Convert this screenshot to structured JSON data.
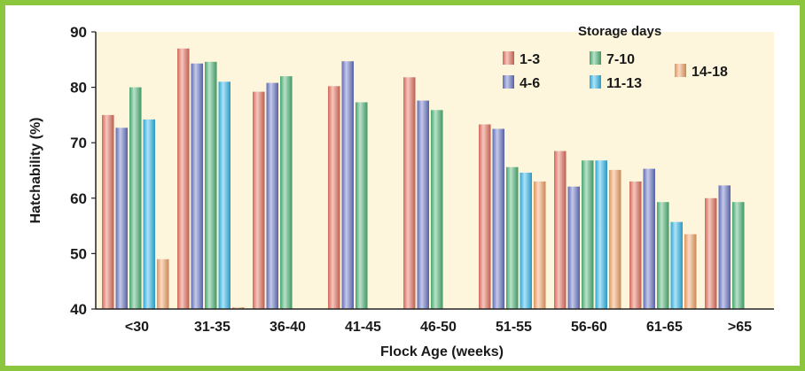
{
  "colors": {
    "frame": "#8cc63f",
    "plot_bg": "#fdf6dc",
    "axis": "#222222"
  },
  "chart_data": {
    "type": "bar",
    "title": "",
    "xlabel": "Flock Age (weeks)",
    "ylabel": "Hatchability (%)",
    "ylim": [
      40,
      90
    ],
    "yticks": [
      40,
      50,
      60,
      70,
      80,
      90
    ],
    "grid": false,
    "legend_title": "Storage days",
    "legend_position": "top-right",
    "categories": [
      "<30",
      "31-35",
      "36-40",
      "41-45",
      "46-50",
      "51-55",
      "56-60",
      "61-65",
      ">65"
    ],
    "series": [
      {
        "name": "1-3",
        "color": "#e8735f",
        "values": [
          75,
          87,
          79.2,
          80.2,
          81.8,
          73.3,
          68.5,
          63,
          60
        ]
      },
      {
        "name": "4-6",
        "color": "#6b77c8",
        "values": [
          72.7,
          84.3,
          80.8,
          84.7,
          77.6,
          72.5,
          62.1,
          65.3,
          62.3
        ]
      },
      {
        "name": "7-10",
        "color": "#4fb779",
        "values": [
          80,
          84.6,
          82,
          77.3,
          75.9,
          65.6,
          66.8,
          59.3,
          59.3
        ]
      },
      {
        "name": "11-13",
        "color": "#33b9ee",
        "values": [
          74.2,
          81,
          null,
          null,
          null,
          64.6,
          66.8,
          55.7,
          null
        ]
      },
      {
        "name": "14-18",
        "color": "#f5a66a",
        "values": [
          49,
          40.3,
          null,
          null,
          null,
          63,
          65.1,
          53.5,
          null
        ]
      }
    ]
  }
}
